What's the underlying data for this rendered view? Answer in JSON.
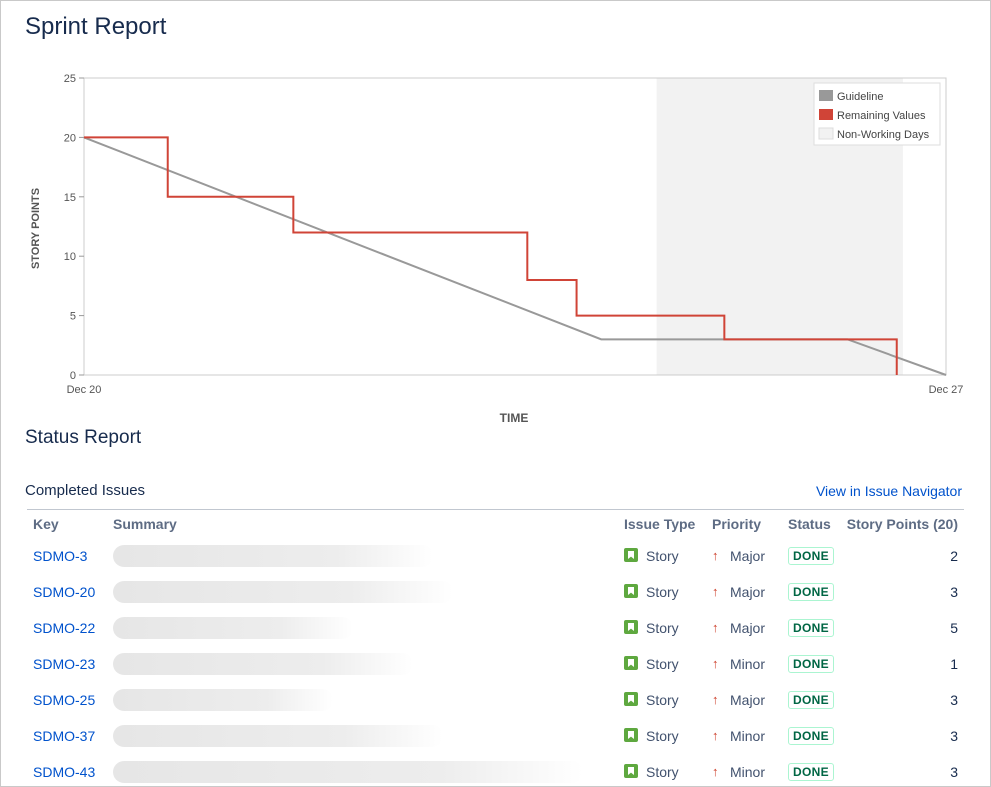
{
  "page_title": "Sprint Report",
  "colors": {
    "guideline": "#999999",
    "remaining": "#d04437",
    "non_working": "#f2f2f2",
    "link": "#0052cc",
    "done": "#006644"
  },
  "chart_data": {
    "type": "line",
    "xlabel": "TIME",
    "ylabel": "STORY POINTS",
    "x_range": [
      "Dec 20",
      "Dec 27"
    ],
    "x_tick_labels": [
      "Dec 20",
      "Dec 27"
    ],
    "ylim": [
      0,
      25
    ],
    "y_ticks": [
      0,
      5,
      10,
      15,
      20,
      25
    ],
    "grid": false,
    "legend_position": "top-right",
    "legend": [
      "Guideline",
      "Remaining Values",
      "Non-Working Days"
    ],
    "non_working_days": [
      [
        4.65,
        6.65
      ]
    ],
    "series": [
      {
        "name": "Guideline",
        "points": [
          [
            0,
            20
          ],
          [
            4.2,
            3
          ],
          [
            6.2,
            3
          ],
          [
            7,
            0
          ]
        ]
      },
      {
        "name": "Remaining Values",
        "points": [
          [
            0,
            20
          ],
          [
            0.68,
            20
          ],
          [
            0.68,
            15
          ],
          [
            1.7,
            15
          ],
          [
            1.7,
            12
          ],
          [
            3.6,
            12
          ],
          [
            3.6,
            8
          ],
          [
            4.0,
            8
          ],
          [
            4.0,
            5
          ],
          [
            5.2,
            5
          ],
          [
            5.2,
            3
          ],
          [
            6.6,
            3
          ],
          [
            6.6,
            0
          ]
        ]
      }
    ]
  },
  "status_report_title": "Status Report",
  "completed_issues": {
    "title": "Completed Issues",
    "navigator_link": "View in Issue Navigator",
    "columns": [
      "Key",
      "Summary",
      "Issue Type",
      "Priority",
      "Status",
      "Story Points (20)"
    ],
    "rows": [
      {
        "key": "SDMO-3",
        "type": "Story",
        "priority": "Major",
        "status": "DONE",
        "points": "2",
        "blur_width": 320
      },
      {
        "key": "SDMO-20",
        "type": "Story",
        "priority": "Major",
        "status": "DONE",
        "points": "3",
        "blur_width": 340
      },
      {
        "key": "SDMO-22",
        "type": "Story",
        "priority": "Major",
        "status": "DONE",
        "points": "5",
        "blur_width": 240
      },
      {
        "key": "SDMO-23",
        "type": "Story",
        "priority": "Minor",
        "status": "DONE",
        "points": "1",
        "blur_width": 300
      },
      {
        "key": "SDMO-25",
        "type": "Story",
        "priority": "Major",
        "status": "DONE",
        "points": "3",
        "blur_width": 220
      },
      {
        "key": "SDMO-37",
        "type": "Story",
        "priority": "Minor",
        "status": "DONE",
        "points": "3",
        "blur_width": 330
      },
      {
        "key": "SDMO-43",
        "type": "Story",
        "priority": "Minor",
        "status": "DONE",
        "points": "3",
        "blur_width": 470
      }
    ]
  }
}
